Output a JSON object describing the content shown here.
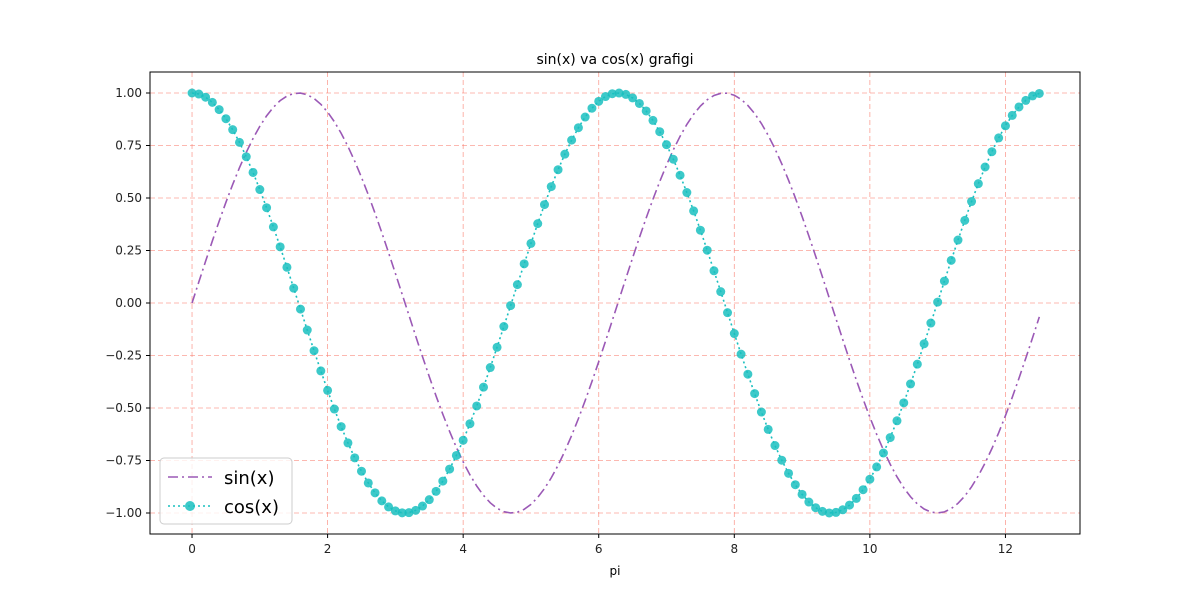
{
  "chart_data": {
    "type": "line",
    "title": "sin(x) va cos(x) grafigi",
    "xlabel": "pi",
    "ylabel": "",
    "xlim": [
      -0.62,
      13.1
    ],
    "ylim": [
      -1.1,
      1.1
    ],
    "x_ticks": [
      0,
      2,
      4,
      6,
      8,
      10,
      12
    ],
    "x_tick_labels": [
      "0",
      "2",
      "4",
      "6",
      "8",
      "10",
      "12"
    ],
    "y_ticks": [
      1.0,
      0.75,
      0.5,
      0.25,
      0.0,
      -0.25,
      -0.5,
      -0.75,
      -1.0
    ],
    "y_tick_labels": [
      "1.00",
      "0.75",
      "0.50",
      "0.25",
      "0.00",
      "−0.25",
      "−0.50",
      "−0.75",
      "−1.00"
    ],
    "grid": true,
    "grid_color": "#fa8072",
    "legend_position": "lower-left",
    "x_range": {
      "start": 0,
      "stop": 12.5,
      "step": 0.1
    },
    "series": [
      {
        "name": "sin(x)",
        "function": "sin",
        "color": "#9b59b6",
        "linestyle": "dashdot",
        "marker": "none"
      },
      {
        "name": "cos(x)",
        "function": "cos",
        "color": "#1abfbf",
        "linestyle": "dotted",
        "marker": "circle"
      }
    ]
  }
}
